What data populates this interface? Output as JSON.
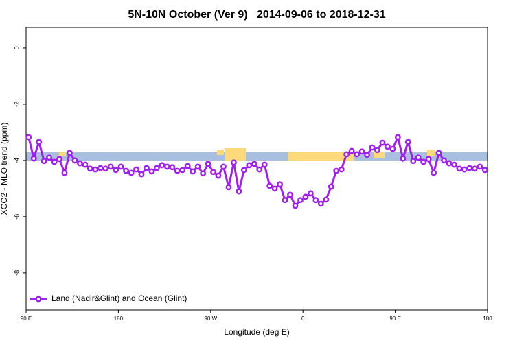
{
  "chart_data": {
    "type": "line",
    "title": "5N-10N October (Ver 9)   2014-09-06 to 2018-12-31",
    "xlabel": "Longitude (deg E)",
    "ylabel": "XCO2 - MLO trend (ppm)",
    "x": [
      92.5,
      97.5,
      102.5,
      107.5,
      112.5,
      117.5,
      122.5,
      127.5,
      132.5,
      137.5,
      142.5,
      147.5,
      152.5,
      157.5,
      162.5,
      167.5,
      172.5,
      177.5,
      182.5,
      187.5,
      192.5,
      197.5,
      202.5,
      207.5,
      212.5,
      217.5,
      222.5,
      227.5,
      232.5,
      237.5,
      242.5,
      247.5,
      252.5,
      257.5,
      262.5,
      267.5,
      272.5,
      277.5,
      282.5,
      287.5,
      292.5,
      297.5,
      302.5,
      307.5,
      312.5,
      317.5,
      322.5,
      327.5,
      332.5,
      337.5,
      342.5,
      347.5,
      352.5,
      357.5,
      362.5,
      367.5,
      372.5,
      377.5,
      382.5,
      387.5,
      392.5,
      397.5,
      402.5,
      407.5,
      412.5,
      417.5,
      422.5,
      427.5,
      432.5,
      437.5,
      442.5,
      447.5,
      452.5,
      457.5,
      462.5,
      467.5,
      472.5,
      477.5,
      482.5,
      487.5,
      492.5,
      497.5,
      502.5,
      507.5,
      512.5,
      517.5,
      522.5,
      527.5,
      532.5,
      537.5
    ],
    "series": [
      {
        "name": "Land (Nadir&Glint) and Ocean (Glint)",
        "color": "#a020f0",
        "values": [
          -3.17,
          -3.93,
          -3.34,
          -4.02,
          -3.9,
          -4.05,
          -3.95,
          -4.44,
          -3.73,
          -4.0,
          -4.1,
          -4.15,
          -4.29,
          -4.32,
          -4.27,
          -4.29,
          -4.22,
          -4.34,
          -4.22,
          -4.37,
          -4.44,
          -4.32,
          -4.49,
          -4.27,
          -4.39,
          -4.27,
          -4.17,
          -4.22,
          -4.24,
          -4.37,
          -4.34,
          -4.2,
          -4.39,
          -4.22,
          -4.46,
          -4.12,
          -4.41,
          -4.54,
          -4.22,
          -4.95,
          -4.07,
          -5.1,
          -4.34,
          -4.17,
          -4.12,
          -4.32,
          -4.15,
          -4.9,
          -5.0,
          -4.85,
          -5.41,
          -5.22,
          -5.61,
          -5.41,
          -5.29,
          -5.17,
          -5.41,
          -5.54,
          -5.39,
          -4.93,
          -4.37,
          -4.32,
          -3.78,
          -3.66,
          -3.78,
          -3.68,
          -3.8,
          -3.54,
          -3.63,
          -3.37,
          -3.51,
          -3.59,
          -3.17,
          -3.93,
          -3.34,
          -4.02,
          -3.9,
          -4.05,
          -3.95,
          -4.44,
          -3.73,
          -4.0,
          -4.1,
          -4.15,
          -4.29,
          -4.32,
          -4.27,
          -4.29,
          -4.22,
          -4.34
        ]
      }
    ],
    "xlim": [
      90,
      540
    ],
    "xticks": [
      {
        "value": 90,
        "label": "90 E"
      },
      180,
      {
        "value": 270,
        "label": "90 W"
      },
      {
        "value": 360,
        "label": "0"
      },
      {
        "value": 450,
        "label": "90 E"
      },
      {
        "value": 540,
        "label": "180"
      }
    ],
    "ylim": [
      -9.32,
      0.73
    ],
    "yticks": [
      0,
      -2,
      -4,
      -6,
      -8
    ],
    "legend": "lower left"
  }
}
